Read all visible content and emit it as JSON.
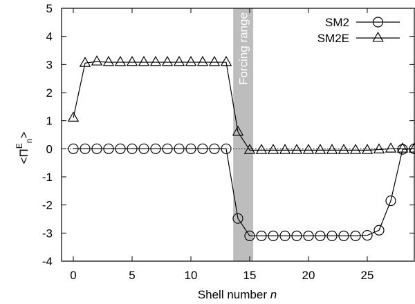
{
  "chart_data": {
    "type": "line",
    "xlabel": "Shell number",
    "xlabel_var": "n",
    "ylabel_parts": {
      "open": "<Π",
      "sup": "E",
      "sub": "n",
      "close": ">"
    },
    "xlim": [
      -1,
      29
    ],
    "ylim": [
      -4,
      5
    ],
    "xticks": [
      0,
      5,
      10,
      15,
      20,
      25
    ],
    "yticks": [
      -4,
      -3,
      -2,
      -1,
      0,
      1,
      2,
      3,
      4,
      5
    ],
    "grid": false,
    "legend_position": "top-right",
    "band": {
      "x0": 13.6,
      "x1": 15.3,
      "label": "Forcing range",
      "color": "#bdbdbd"
    },
    "zero_line": {
      "y": 0,
      "style": "dotted"
    },
    "series": [
      {
        "name": "SM2",
        "marker": "circle",
        "x": [
          0,
          1,
          2,
          3,
          4,
          5,
          6,
          7,
          8,
          9,
          10,
          11,
          12,
          13,
          14,
          15,
          16,
          17,
          18,
          19,
          20,
          21,
          22,
          23,
          24,
          25,
          26,
          27,
          28,
          29
        ],
        "y": [
          0,
          0,
          0,
          0,
          0,
          0,
          0,
          0,
          0,
          0,
          0,
          0,
          0,
          0,
          -2.48,
          -3.1,
          -3.1,
          -3.1,
          -3.1,
          -3.1,
          -3.1,
          -3.1,
          -3.1,
          -3.1,
          -3.1,
          -3.08,
          -2.9,
          -1.85,
          -0.02,
          0
        ]
      },
      {
        "name": "SM2E",
        "marker": "triangle",
        "x": [
          0,
          1,
          2,
          3,
          4,
          5,
          6,
          7,
          8,
          9,
          10,
          11,
          12,
          13,
          14,
          15,
          16,
          17,
          18,
          19,
          20,
          21,
          22,
          23,
          24,
          25,
          26,
          27,
          28,
          29
        ],
        "y": [
          1.1,
          3.05,
          3.1,
          3.08,
          3.08,
          3.08,
          3.08,
          3.08,
          3.08,
          3.08,
          3.08,
          3.08,
          3.08,
          3.08,
          0.6,
          -0.05,
          -0.05,
          -0.05,
          -0.05,
          -0.05,
          -0.05,
          -0.05,
          -0.05,
          -0.05,
          -0.05,
          -0.05,
          -0.03,
          0.0,
          0.0,
          0.0
        ]
      }
    ]
  }
}
